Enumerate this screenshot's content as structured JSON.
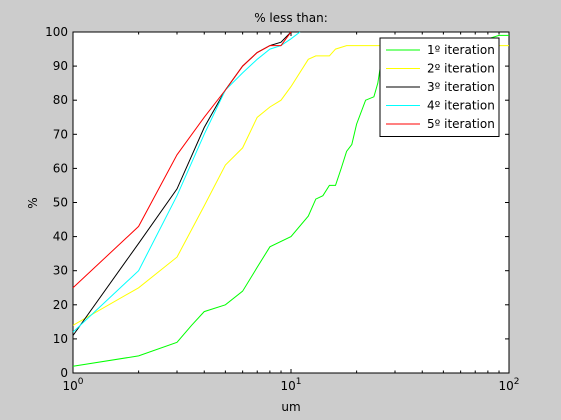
{
  "chart_data": {
    "type": "line",
    "title": "% less than:",
    "xlabel": "um",
    "ylabel": "%",
    "xscale": "log",
    "xlim": [
      1,
      100
    ],
    "ylim": [
      0,
      100
    ],
    "xticks": [
      1,
      10,
      100
    ],
    "xtick_labels": [
      {
        "base": "10",
        "exp": "0"
      },
      {
        "base": "10",
        "exp": "1"
      },
      {
        "base": "10",
        "exp": "2"
      }
    ],
    "yticks": [
      0,
      10,
      20,
      30,
      40,
      50,
      60,
      70,
      80,
      90,
      100
    ],
    "ytick_labels": [
      "0",
      "10",
      "20",
      "30",
      "40",
      "50",
      "60",
      "70",
      "80",
      "90",
      "100"
    ],
    "grid": false,
    "legend_position": "top-right",
    "series": [
      {
        "name": "1º iteration",
        "color": "#00ff00",
        "x": [
          1,
          2,
          3,
          3.5,
          4,
          5,
          6,
          7,
          8,
          10,
          12,
          13,
          14,
          15,
          16,
          17,
          18,
          19,
          20,
          22,
          24,
          25,
          26,
          27,
          30,
          40,
          60,
          80,
          90,
          100
        ],
        "y": [
          2,
          5,
          9,
          14,
          18,
          20,
          24,
          31,
          37,
          40,
          46,
          51,
          52,
          55,
          55,
          60,
          65,
          67,
          73,
          80,
          81,
          85,
          92,
          98,
          98,
          98,
          98,
          98,
          99,
          99
        ]
      },
      {
        "name": "2º iteration",
        "color": "#ffff00",
        "x": [
          1,
          2,
          3,
          4,
          5,
          6,
          7,
          8,
          9,
          10,
          12,
          13,
          15,
          16,
          18,
          20,
          30,
          50,
          100
        ],
        "y": [
          14,
          25,
          34,
          49,
          61,
          66,
          75,
          78,
          80,
          84,
          92,
          93,
          93,
          95,
          96,
          96,
          96,
          96,
          96
        ]
      },
      {
        "name": "3º iteration",
        "color": "#000000",
        "x": [
          1,
          2,
          3,
          4,
          5,
          6,
          7,
          8,
          9,
          10
        ],
        "y": [
          11,
          38,
          54,
          72,
          83,
          90,
          94,
          96,
          97,
          100
        ]
      },
      {
        "name": "4º iteration",
        "color": "#00ffff",
        "x": [
          1,
          2,
          3,
          4,
          5,
          6,
          7,
          8,
          9,
          10,
          11
        ],
        "y": [
          12,
          30,
          52,
          70,
          83,
          88,
          92,
          95,
          96,
          98,
          100
        ]
      },
      {
        "name": "5º iteration",
        "color": "#ff0000",
        "x": [
          1,
          2,
          3,
          4,
          5,
          6,
          7,
          8,
          9,
          10
        ],
        "y": [
          25,
          43,
          64,
          75,
          83,
          90,
          94,
          96,
          96,
          100
        ]
      }
    ]
  }
}
